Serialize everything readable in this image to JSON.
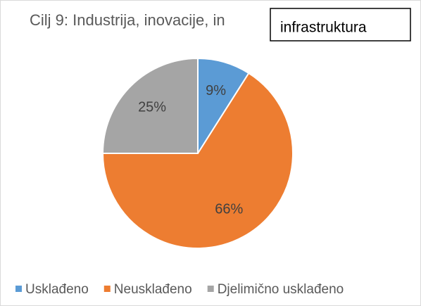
{
  "chart_data": {
    "type": "pie",
    "title": "Cilj 9: Industrija, inovacije, in",
    "annotation": "infrastruktura",
    "categories": [
      "Usklađeno",
      "Neusklađeno",
      "Djelimično usklađeno"
    ],
    "values": [
      9,
      66,
      25
    ],
    "value_labels": [
      "9%",
      "66%",
      "25%"
    ],
    "colors": [
      "#5b9bd5",
      "#ed7d31",
      "#a5a5a5"
    ],
    "legend": "bottom"
  }
}
